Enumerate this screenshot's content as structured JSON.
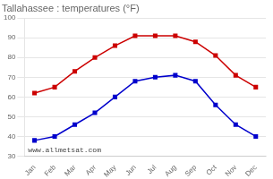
{
  "chart_data": {
    "type": "line",
    "title": "Tallahassee : temperatures (°F)",
    "categories": [
      "Jan",
      "Feb",
      "Mar",
      "Apr",
      "May",
      "Jun",
      "Jul",
      "Aug",
      "Sep",
      "Oct",
      "Nov",
      "Dec"
    ],
    "series": [
      {
        "color": "#cc0000",
        "values": [
          62,
          65,
          73,
          80,
          86,
          91,
          91,
          91,
          88,
          81,
          71,
          65
        ]
      },
      {
        "color": "#0000cc",
        "values": [
          38,
          40,
          46,
          52,
          60,
          68,
          70,
          71,
          68,
          56,
          46,
          40
        ]
      }
    ],
    "ylim": [
      30,
      100
    ],
    "yticks": [
      30,
      40,
      50,
      60,
      70,
      80,
      90,
      100
    ],
    "grid": true,
    "marker": "square",
    "line_style": "solid",
    "annotations": [
      "www.allmetsat.com"
    ]
  }
}
